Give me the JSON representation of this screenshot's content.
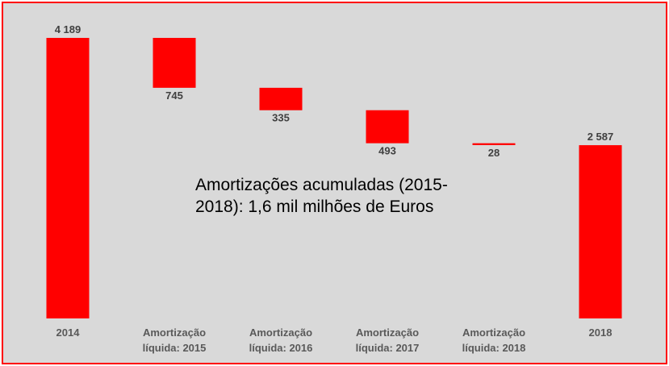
{
  "chart_data": {
    "type": "bar",
    "subtype": "waterfall",
    "categories": [
      [
        "2014"
      ],
      [
        "Amortização",
        "líquida: 2015"
      ],
      [
        "Amortização",
        "líquida: 2016"
      ],
      [
        "Amortização",
        "líquida: 2017"
      ],
      [
        "Amortização",
        "líquida: 2018"
      ],
      [
        "2018"
      ]
    ],
    "values": [
      4189,
      -745,
      -335,
      -493,
      -28,
      2587
    ],
    "value_labels": [
      "4 189",
      "745",
      "335",
      "493",
      "28",
      "2 587"
    ],
    "bar_color": "#ff0000",
    "background": "#d9d9d9",
    "border_color": "#ff0000",
    "annotation": [
      "Amortizações acumuladas (2015-",
      "2018): 1,6 mil milhões de Euros"
    ],
    "ylim": [
      0,
      4189
    ],
    "grid": false,
    "legend": "none"
  }
}
